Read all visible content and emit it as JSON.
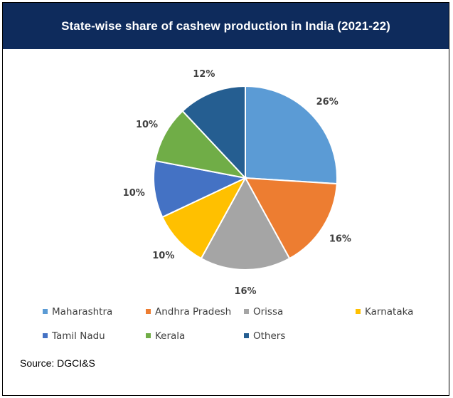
{
  "chart_data": {
    "type": "pie",
    "title": "State-wise share of cashew production in India (2021-22)",
    "categories": [
      "Maharashtra",
      "Andhra Pradesh",
      "Orissa",
      "Karnataka",
      "Tamil Nadu",
      "Kerala",
      "Others"
    ],
    "values": [
      26,
      16,
      16,
      10,
      10,
      10,
      12
    ],
    "data_labels": [
      "26%",
      "16%",
      "16%",
      "10%",
      "10%",
      "10%",
      "12%"
    ],
    "colors": [
      "#5b9bd5",
      "#ed7d31",
      "#a5a5a5",
      "#ffc000",
      "#4472c4",
      "#70ad47",
      "#255e91"
    ],
    "legend_position": "bottom",
    "start_angle": "12 o'clock",
    "direction": "clockwise"
  },
  "source": "Source: DGCI&S"
}
